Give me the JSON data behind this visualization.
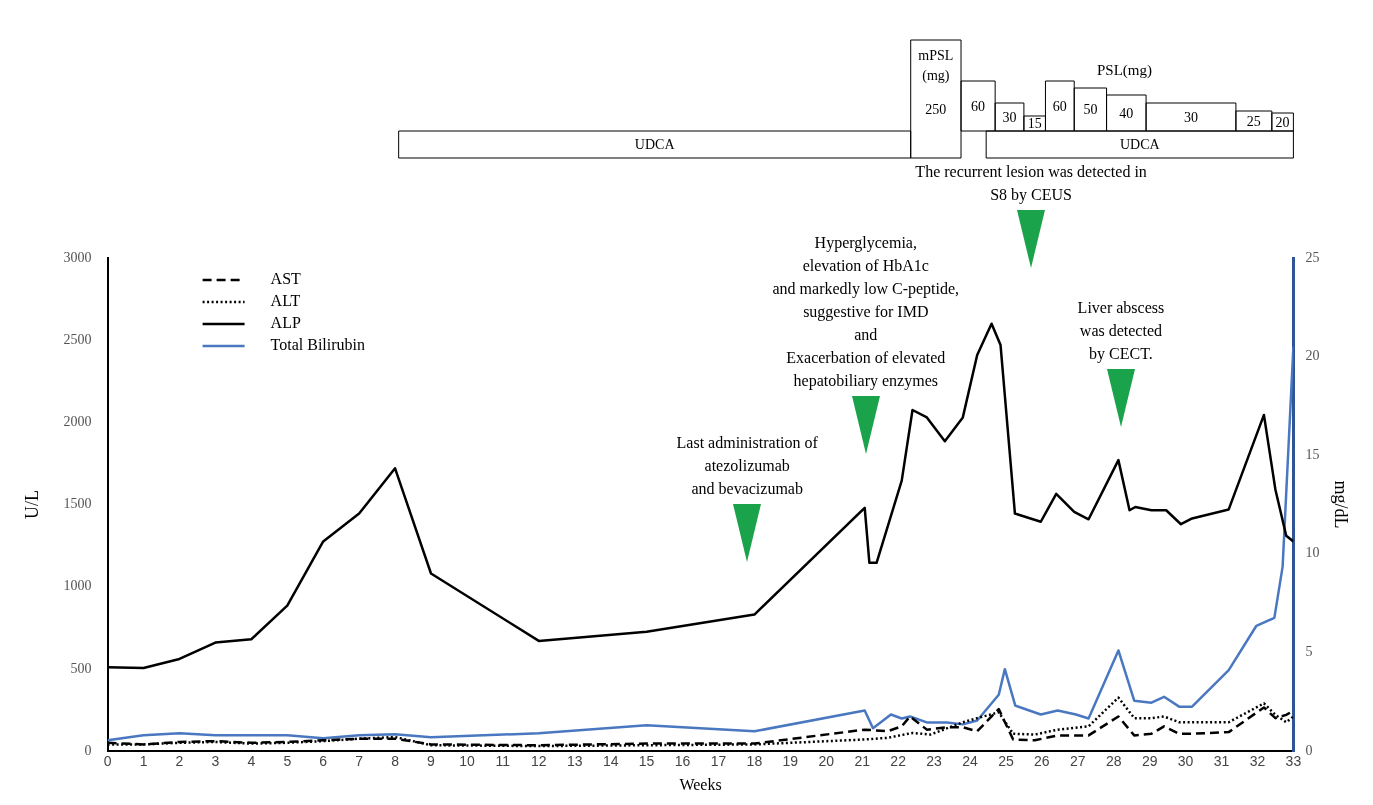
{
  "chart_data": {
    "type": "line",
    "xlabel": "Weeks",
    "ylabel": "U/L",
    "y2label": "mg/dL",
    "xlim": [
      0,
      33
    ],
    "xticks": [
      0,
      1,
      2,
      3,
      4,
      5,
      6,
      7,
      8,
      9,
      10,
      11,
      12,
      13,
      14,
      15,
      16,
      17,
      18,
      19,
      20,
      21,
      22,
      23,
      24,
      25,
      26,
      27,
      28,
      29,
      30,
      31,
      32,
      33
    ],
    "ylim": [
      0,
      3000
    ],
    "yticks": [
      0,
      500,
      1000,
      1500,
      2000,
      2500,
      3000
    ],
    "y2lim": [
      0,
      25
    ],
    "y2ticks": [
      0,
      5,
      10,
      15,
      20,
      25
    ],
    "legend": "top left",
    "marker": "none",
    "series": [
      {
        "name": "AST",
        "color": "#000000",
        "line_style": "dashed",
        "x": [
          0,
          1,
          2,
          3,
          4,
          5,
          6,
          7,
          8,
          9,
          12,
          15,
          18,
          21.07,
          21.7,
          22.1,
          22.33,
          22.8,
          23.36,
          23.8,
          24.2,
          24.8,
          25.2,
          25.8,
          26.44,
          27.3,
          28.13,
          28.57,
          29.05,
          29.4,
          29.82,
          30.18,
          31.2,
          32.18,
          32.5,
          32.8,
          33
        ],
        "values": [
          50,
          40,
          55,
          60,
          50,
          55,
          65,
          75,
          75,
          40,
          35,
          45,
          45,
          130,
          120,
          150,
          210,
          130,
          145,
          145,
          120,
          255,
          70,
          65,
          95,
          95,
          210,
          95,
          105,
          150,
          105,
          105,
          115,
          265,
          200,
          220,
          245
        ]
      },
      {
        "name": "ALT",
        "color": "#000000",
        "line_style": "dotted",
        "x": [
          0,
          1,
          2,
          3,
          4,
          5,
          6,
          7,
          8,
          9,
          12,
          15,
          18,
          21.07,
          21.7,
          22.4,
          22.9,
          23.8,
          24.2,
          24.8,
          25.2,
          25.8,
          26.44,
          27.3,
          28.13,
          28.57,
          29.05,
          29.4,
          29.82,
          30.18,
          31.2,
          32.18,
          32.5,
          32.8,
          33
        ],
        "values": [
          40,
          40,
          50,
          55,
          45,
          50,
          60,
          75,
          85,
          35,
          30,
          35,
          40,
          70,
          80,
          110,
          100,
          175,
          200,
          235,
          105,
          100,
          130,
          150,
          325,
          200,
          200,
          210,
          175,
          175,
          175,
          290,
          220,
          175,
          210
        ]
      },
      {
        "name": "ALP",
        "color": "#000000",
        "line_style": "solid",
        "x": [
          0,
          1,
          2,
          3,
          4,
          5,
          6,
          7,
          8,
          9,
          12,
          15,
          18,
          21.07,
          21.2,
          21.4,
          22.1,
          22.4,
          22.8,
          23.3,
          23.8,
          24.2,
          24.6,
          24.85,
          25.25,
          25.97,
          26.4,
          26.9,
          27.3,
          28.13,
          28.44,
          28.6,
          29.05,
          29.46,
          29.87,
          30.18,
          31.2,
          32.18,
          32.5,
          32.8,
          33
        ],
        "values": [
          510,
          505,
          560,
          660,
          680,
          885,
          1275,
          1445,
          1720,
          1080,
          670,
          725,
          830,
          1480,
          1145,
          1145,
          1645,
          2075,
          2030,
          1885,
          2030,
          2410,
          2600,
          2470,
          1445,
          1395,
          1565,
          1455,
          1410,
          1770,
          1465,
          1485,
          1465,
          1465,
          1380,
          1415,
          1470,
          2045,
          1590,
          1310,
          1275
        ]
      },
      {
        "name": "Total Bilirubin",
        "color": "#4a78c0",
        "line_style": "solid",
        "axis": "y2",
        "x": [
          0,
          1,
          2,
          3,
          4,
          5,
          6,
          7,
          8,
          9,
          12,
          15,
          18,
          21.07,
          21.3,
          21.8,
          22.1,
          22.33,
          22.8,
          23.36,
          23.8,
          24.2,
          24.8,
          24.97,
          25.26,
          25.97,
          26.44,
          26.95,
          27.3,
          28.13,
          28.57,
          29.05,
          29.4,
          29.82,
          30.18,
          31.2,
          31.97,
          32.47,
          32.7,
          33
        ],
        "values": [
          0.55,
          0.8,
          0.9,
          0.8,
          0.8,
          0.8,
          0.65,
          0.8,
          0.85,
          0.7,
          0.9,
          1.3,
          1.0,
          2.05,
          1.15,
          1.85,
          1.65,
          1.75,
          1.45,
          1.45,
          1.35,
          1.55,
          2.85,
          4.15,
          2.3,
          1.85,
          2.05,
          1.85,
          1.65,
          5.1,
          2.55,
          2.45,
          2.75,
          2.25,
          2.25,
          4.1,
          6.35,
          6.75,
          9.35,
          20.5
        ]
      }
    ],
    "annotations": [
      "UDCA",
      "UDCA",
      "mPSL\n(mg)\n250",
      "60",
      "30",
      "15",
      "60",
      "50",
      "40",
      "30",
      "25",
      "20",
      "PSL(mg)",
      "Last administration of\natezolizumab\nand bevacizumab",
      "Hyperglycemia,\nelevation of HbA1c\nand markedly low C-peptide,\nsuggestive for IMD\nand\nExacerbation of elevated\nhepatobiliary enzymes",
      "The recurrent lesion was detected in\nS8 by CEUS",
      "Liver abscess\nwas detected\nby CECT."
    ]
  }
}
